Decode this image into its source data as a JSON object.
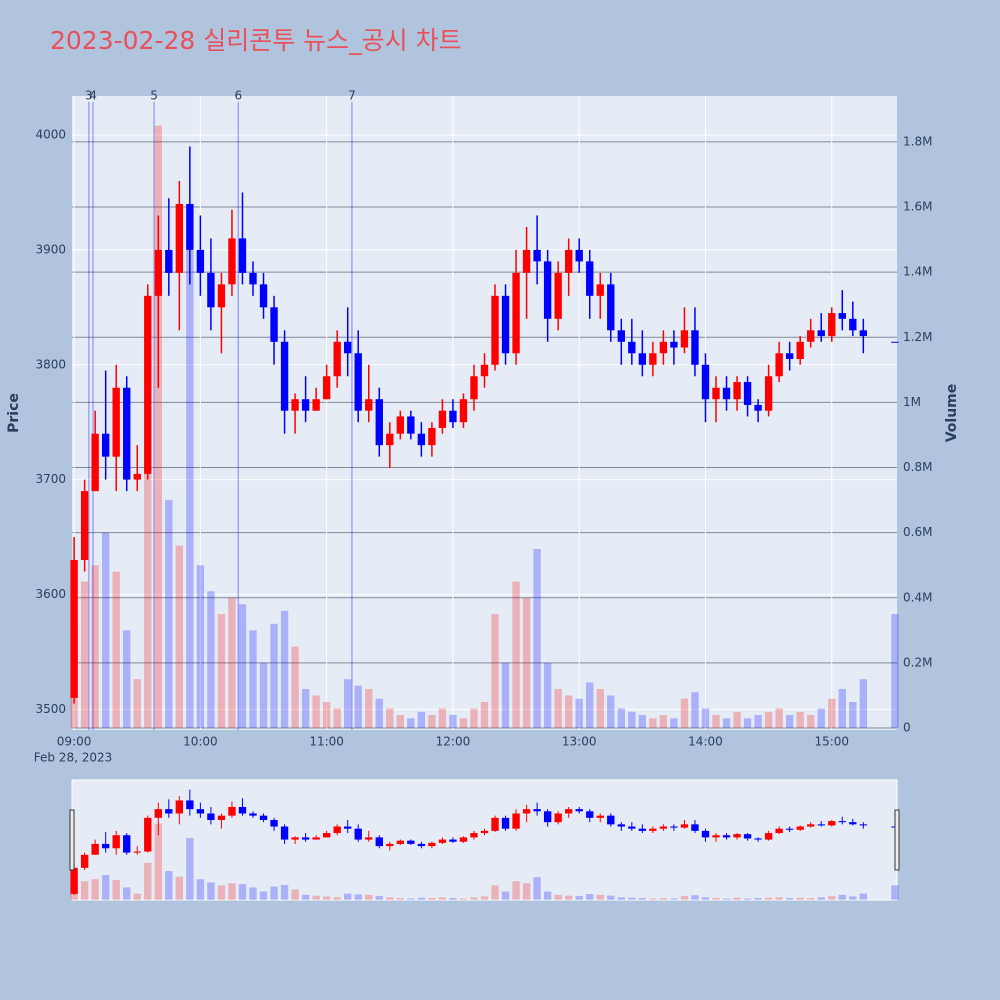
{
  "chart_data": {
    "type": "candlestick",
    "title": "2023-02-28 실리콘투 뉴스_공시 차트",
    "x": [
      "09:00",
      "09:05",
      "09:10",
      "09:15",
      "09:20",
      "09:25",
      "09:30",
      "09:35",
      "09:40",
      "09:45",
      "09:50",
      "09:55",
      "10:00",
      "10:05",
      "10:10",
      "10:15",
      "10:20",
      "10:25",
      "10:30",
      "10:35",
      "10:40",
      "10:45",
      "10:50",
      "10:55",
      "11:00",
      "11:05",
      "11:10",
      "11:15",
      "11:20",
      "11:25",
      "11:30",
      "11:35",
      "11:40",
      "11:45",
      "11:50",
      "11:55",
      "12:00",
      "12:05",
      "12:10",
      "12:15",
      "12:20",
      "12:25",
      "12:30",
      "12:35",
      "12:40",
      "12:45",
      "12:50",
      "12:55",
      "13:00",
      "13:05",
      "13:10",
      "13:15",
      "13:20",
      "13:25",
      "13:30",
      "13:35",
      "13:40",
      "13:45",
      "13:50",
      "13:55",
      "14:00",
      "14:05",
      "14:10",
      "14:15",
      "14:20",
      "14:25",
      "14:30",
      "14:35",
      "14:40",
      "14:45",
      "14:50",
      "14:55",
      "15:00",
      "15:05",
      "15:10",
      "15:15",
      "15:30"
    ],
    "open": [
      3510,
      3630,
      3690,
      3740,
      3720,
      3780,
      3700,
      3705,
      3860,
      3900,
      3880,
      3940,
      3900,
      3880,
      3850,
      3870,
      3910,
      3880,
      3870,
      3850,
      3820,
      3760,
      3770,
      3760,
      3770,
      3790,
      3820,
      3810,
      3760,
      3770,
      3730,
      3740,
      3755,
      3740,
      3730,
      3745,
      3760,
      3750,
      3770,
      3790,
      3800,
      3860,
      3810,
      3880,
      3900,
      3890,
      3840,
      3880,
      3900,
      3890,
      3860,
      3870,
      3830,
      3820,
      3810,
      3800,
      3810,
      3820,
      3815,
      3830,
      3800,
      3770,
      3780,
      3770,
      3785,
      3765,
      3760,
      3790,
      3810,
      3805,
      3820,
      3830,
      3825,
      3845,
      3840,
      3830,
      3820
    ],
    "high": [
      3650,
      3700,
      3760,
      3795,
      3800,
      3790,
      3730,
      3870,
      3930,
      3945,
      3960,
      3990,
      3930,
      3910,
      3880,
      3935,
      3950,
      3890,
      3880,
      3860,
      3830,
      3775,
      3790,
      3780,
      3800,
      3830,
      3850,
      3830,
      3800,
      3780,
      3750,
      3760,
      3760,
      3750,
      3750,
      3770,
      3770,
      3775,
      3800,
      3810,
      3870,
      3870,
      3900,
      3920,
      3930,
      3900,
      3890,
      3910,
      3910,
      3900,
      3880,
      3880,
      3840,
      3840,
      3830,
      3820,
      3830,
      3830,
      3850,
      3850,
      3810,
      3790,
      3790,
      3790,
      3790,
      3770,
      3800,
      3820,
      3820,
      3825,
      3840,
      3845,
      3850,
      3865,
      3855,
      3840,
      3820
    ],
    "low": [
      3505,
      3620,
      3690,
      3700,
      3690,
      3690,
      3690,
      3700,
      3780,
      3860,
      3830,
      3870,
      3860,
      3830,
      3810,
      3860,
      3870,
      3860,
      3840,
      3800,
      3740,
      3740,
      3750,
      3760,
      3770,
      3780,
      3790,
      3750,
      3750,
      3720,
      3710,
      3735,
      3735,
      3720,
      3720,
      3740,
      3745,
      3745,
      3760,
      3780,
      3795,
      3800,
      3800,
      3840,
      3870,
      3820,
      3830,
      3860,
      3880,
      3840,
      3840,
      3820,
      3800,
      3800,
      3790,
      3790,
      3800,
      3800,
      3810,
      3790,
      3750,
      3750,
      3760,
      3760,
      3755,
      3750,
      3755,
      3785,
      3795,
      3800,
      3815,
      3820,
      3820,
      3830,
      3825,
      3810,
      3820
    ],
    "close": [
      3630,
      3690,
      3740,
      3720,
      3780,
      3700,
      3705,
      3860,
      3900,
      3880,
      3940,
      3900,
      3880,
      3850,
      3870,
      3910,
      3880,
      3870,
      3850,
      3820,
      3760,
      3770,
      3760,
      3770,
      3790,
      3820,
      3810,
      3760,
      3770,
      3730,
      3740,
      3755,
      3740,
      3730,
      3745,
      3760,
      3750,
      3770,
      3790,
      3800,
      3860,
      3810,
      3880,
      3900,
      3890,
      3840,
      3880,
      3900,
      3890,
      3860,
      3870,
      3830,
      3820,
      3810,
      3800,
      3810,
      3820,
      3815,
      3830,
      3800,
      3770,
      3780,
      3770,
      3785,
      3765,
      3760,
      3790,
      3810,
      3805,
      3820,
      3830,
      3825,
      3845,
      3840,
      3830,
      3825,
      3820
    ],
    "volume": [
      300000,
      450000,
      500000,
      600000,
      480000,
      300000,
      150000,
      900000,
      1850000,
      700000,
      560000,
      1500000,
      500000,
      420000,
      350000,
      400000,
      380000,
      300000,
      200000,
      320000,
      360000,
      250000,
      120000,
      100000,
      80000,
      60000,
      150000,
      130000,
      120000,
      90000,
      60000,
      40000,
      30000,
      50000,
      40000,
      60000,
      40000,
      30000,
      60000,
      80000,
      350000,
      200000,
      450000,
      400000,
      550000,
      200000,
      120000,
      100000,
      90000,
      140000,
      120000,
      100000,
      60000,
      50000,
      40000,
      30000,
      40000,
      30000,
      90000,
      110000,
      60000,
      40000,
      30000,
      50000,
      30000,
      40000,
      50000,
      60000,
      40000,
      50000,
      40000,
      60000,
      90000,
      120000,
      80000,
      150000,
      350000
    ],
    "increasing_color": "#ff0000",
    "decreasing_color": "#0000ff",
    "xlim": [
      "08:59",
      "15:31"
    ],
    "xticks": [
      "09:00",
      "10:00",
      "11:00",
      "12:00",
      "13:00",
      "14:00",
      "15:00"
    ],
    "x_date_label": "Feb 28, 2023",
    "ylim": [
      3482,
      4034
    ],
    "yticks": [
      3500,
      3600,
      3700,
      3800,
      3900,
      4000
    ],
    "y_label": "Price",
    "y2lim": [
      -6000,
      1941000
    ],
    "y2ticks": [
      0,
      {
        "value": 200000,
        "label": "0.2M"
      },
      {
        "value": 400000,
        "label": "0.4M"
      },
      {
        "value": 600000,
        "label": "0.6M"
      },
      {
        "value": 800000,
        "label": "0.8M"
      },
      {
        "value": 1000000,
        "label": "1M"
      },
      {
        "value": 1200000,
        "label": "1.2M"
      },
      {
        "value": 1400000,
        "label": "1.4M"
      },
      {
        "value": 1600000,
        "label": "1.6M"
      },
      {
        "value": 1800000,
        "label": "1.8M"
      }
    ],
    "y2_label": "Volume",
    "annotations": [
      {
        "x": "09:07",
        "label": "3"
      },
      {
        "x": "09:09",
        "label": "4"
      },
      {
        "x": "09:38",
        "label": "5"
      },
      {
        "x": "10:18",
        "label": "6"
      },
      {
        "x": "11:12",
        "label": "7"
      }
    ],
    "rangeslider": true
  }
}
